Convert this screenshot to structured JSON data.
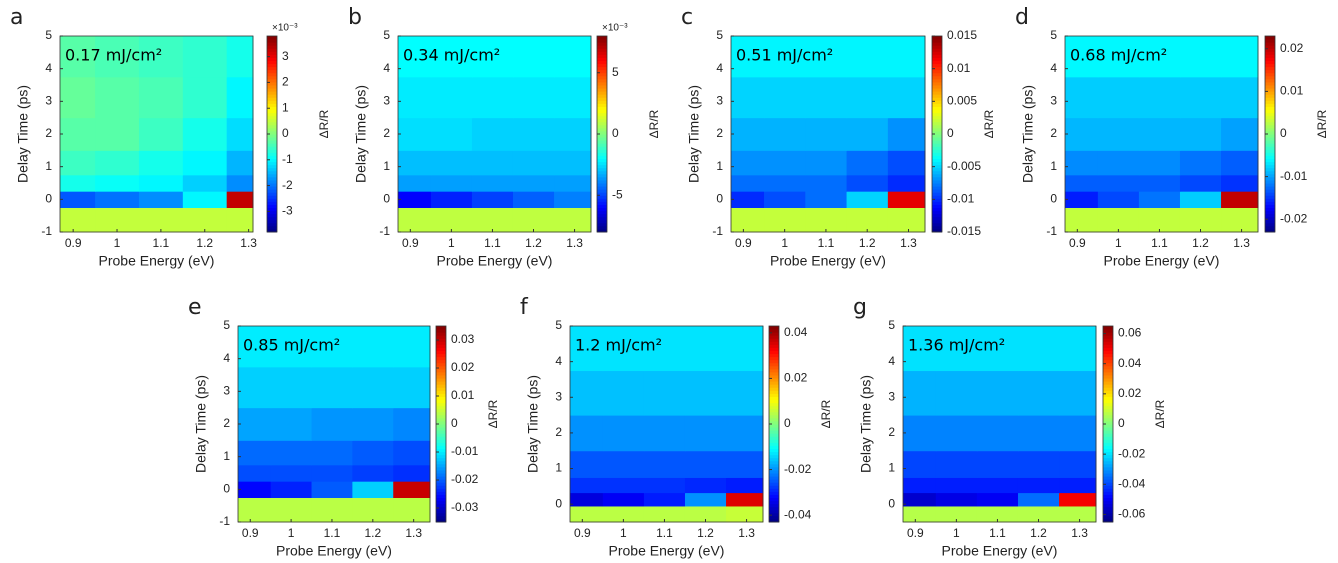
{
  "chart_data": [
    {
      "type": "heatmap",
      "panel_label": "a",
      "annotation": "0.17 mJ/cm²",
      "xlabel": "Probe Energy (eV)",
      "ylabel": "Delay Time (ps)",
      "colorbar_label": "ΔR/R",
      "colorbar_multiplier": "×10⁻³",
      "colormap": "jet",
      "x": [
        0.9,
        1.0,
        1.1,
        1.2,
        1.3
      ],
      "y": [
        -0.5,
        0,
        0.5,
        1,
        2,
        3,
        4.5
      ],
      "z": [
        [
          0.5,
          0.5,
          0.5,
          0.5,
          0.5
        ],
        [
          -2.2,
          -2,
          -1.8,
          -1,
          3.3
        ],
        [
          -0.8,
          -0.9,
          -1,
          -1.3,
          -1.8
        ],
        [
          -0.5,
          -0.6,
          -0.8,
          -1,
          -1.5
        ],
        [
          -0.3,
          -0.3,
          -0.5,
          -0.8,
          -1.2
        ],
        [
          -0.2,
          -0.3,
          -0.4,
          -0.6,
          -1
        ],
        [
          -0.3,
          -0.4,
          -0.5,
          -0.6,
          -0.8
        ]
      ],
      "xlim": [
        0.87,
        1.31
      ],
      "ylim": [
        -1,
        5
      ],
      "xticks": [
        0.9,
        1,
        1.1,
        1.2,
        1.3
      ],
      "yticks": [
        -1,
        0,
        1,
        2,
        3,
        4,
        5
      ],
      "clim": [
        -3.8,
        3.8
      ],
      "cticks": [
        -3,
        -2,
        -1,
        0,
        1,
        2,
        3
      ]
    },
    {
      "type": "heatmap",
      "panel_label": "b",
      "annotation": "0.34 mJ/cm²",
      "xlabel": "Probe Energy (eV)",
      "ylabel": "Delay Time (ps)",
      "colorbar_label": "ΔR/R",
      "colorbar_multiplier": "×10⁻³",
      "colormap": "jet",
      "x": [
        0.9,
        1.0,
        1.1,
        1.2,
        1.3
      ],
      "y": [
        -0.5,
        0,
        0.5,
        1,
        2,
        3,
        4.5
      ],
      "z": [
        [
          1,
          1,
          1,
          1,
          1
        ],
        [
          -6,
          -5.5,
          -5,
          -4.5,
          -4
        ],
        [
          -3.5,
          -3.5,
          -3.5,
          -3.5,
          -3.5
        ],
        [
          -3,
          -3,
          -3,
          -3,
          -3
        ],
        [
          -2.5,
          -2.5,
          -2.7,
          -2.7,
          -2.7
        ],
        [
          -2.3,
          -2.3,
          -2.3,
          -2.3,
          -2.3
        ],
        [
          -2,
          -2,
          -2,
          -2,
          -2
        ]
      ],
      "xlim": [
        0.87,
        1.34
      ],
      "ylim": [
        -1,
        5
      ],
      "xticks": [
        0.9,
        1,
        1.1,
        1.2,
        1.3
      ],
      "yticks": [
        -1,
        0,
        1,
        2,
        3,
        4,
        5
      ],
      "clim": [
        -8,
        8
      ],
      "cticks": [
        -5,
        0,
        5
      ]
    },
    {
      "type": "heatmap",
      "panel_label": "c",
      "annotation": "0.51 mJ/cm²",
      "xlabel": "Probe Energy (eV)",
      "ylabel": "Delay Time (ps)",
      "colorbar_label": "ΔR/R",
      "colormap": "jet",
      "x": [
        0.9,
        1.0,
        1.1,
        1.2,
        1.3
      ],
      "y": [
        -0.5,
        0,
        0.5,
        1,
        2,
        3,
        4.5
      ],
      "z": [
        [
          0.002,
          0.002,
          0.002,
          0.002,
          0.002
        ],
        [
          -0.01,
          -0.009,
          -0.008,
          -0.005,
          0.012
        ],
        [
          -0.008,
          -0.008,
          -0.008,
          -0.009,
          -0.01
        ],
        [
          -0.007,
          -0.007,
          -0.007,
          -0.008,
          -0.009
        ],
        [
          -0.006,
          -0.006,
          -0.006,
          -0.006,
          -0.007
        ],
        [
          -0.005,
          -0.005,
          -0.005,
          -0.005,
          -0.005
        ],
        [
          -0.004,
          -0.004,
          -0.004,
          -0.004,
          -0.004
        ]
      ],
      "xlim": [
        0.87,
        1.34
      ],
      "ylim": [
        -1,
        5
      ],
      "xticks": [
        0.9,
        1,
        1.1,
        1.2,
        1.3
      ],
      "yticks": [
        -1,
        0,
        1,
        2,
        3,
        4,
        5
      ],
      "clim": [
        -0.015,
        0.015
      ],
      "cticks": [
        -0.015,
        -0.01,
        -0.005,
        0,
        0.005,
        0.01,
        0.015
      ]
    },
    {
      "type": "heatmap",
      "panel_label": "d",
      "annotation": "0.68 mJ/cm²",
      "xlabel": "Probe Energy (eV)",
      "ylabel": "Delay Time (ps)",
      "colorbar_label": "ΔR/R",
      "colormap": "jet",
      "x": [
        0.9,
        1.0,
        1.1,
        1.2,
        1.3
      ],
      "y": [
        -0.5,
        0,
        0.5,
        1,
        2,
        3,
        4.5
      ],
      "z": [
        [
          0.003,
          0.003,
          0.003,
          0.003,
          0.003
        ],
        [
          -0.016,
          -0.014,
          -0.012,
          -0.008,
          0.02
        ],
        [
          -0.013,
          -0.013,
          -0.013,
          -0.014,
          -0.015
        ],
        [
          -0.011,
          -0.011,
          -0.011,
          -0.012,
          -0.013
        ],
        [
          -0.009,
          -0.009,
          -0.009,
          -0.009,
          -0.01
        ],
        [
          -0.008,
          -0.008,
          -0.008,
          -0.008,
          -0.008
        ],
        [
          -0.006,
          -0.006,
          -0.006,
          -0.006,
          -0.006
        ]
      ],
      "xlim": [
        0.87,
        1.34
      ],
      "ylim": [
        -1,
        5
      ],
      "xticks": [
        0.9,
        1,
        1.1,
        1.2,
        1.3
      ],
      "yticks": [
        -1,
        0,
        1,
        2,
        3,
        4,
        5
      ],
      "clim": [
        -0.023,
        0.023
      ],
      "cticks": [
        -0.02,
        -0.01,
        0,
        0.01,
        0.02
      ]
    },
    {
      "type": "heatmap",
      "panel_label": "e",
      "annotation": "0.85 mJ/cm²",
      "xlabel": "Probe Energy (eV)",
      "ylabel": "Delay Time (ps)",
      "colorbar_label": "ΔR/R",
      "colormap": "jet",
      "x": [
        0.9,
        1.0,
        1.1,
        1.2,
        1.3
      ],
      "y": [
        -0.5,
        0,
        0.5,
        1,
        2,
        3,
        4.5
      ],
      "z": [
        [
          0.004,
          0.004,
          0.004,
          0.004,
          0.004
        ],
        [
          -0.026,
          -0.024,
          -0.02,
          -0.012,
          0.03
        ],
        [
          -0.021,
          -0.021,
          -0.021,
          -0.022,
          -0.023
        ],
        [
          -0.019,
          -0.019,
          -0.019,
          -0.02,
          -0.021
        ],
        [
          -0.015,
          -0.015,
          -0.016,
          -0.016,
          -0.017
        ],
        [
          -0.012,
          -0.012,
          -0.012,
          -0.012,
          -0.012
        ],
        [
          -0.01,
          -0.01,
          -0.01,
          -0.01,
          -0.01
        ]
      ],
      "xlim": [
        0.87,
        1.34
      ],
      "ylim": [
        -1,
        5
      ],
      "xticks": [
        0.9,
        1,
        1.1,
        1.2,
        1.3
      ],
      "yticks": [
        -1,
        0,
        1,
        2,
        3,
        4,
        5
      ],
      "clim": [
        -0.035,
        0.035
      ],
      "cticks": [
        -0.03,
        -0.02,
        -0.01,
        0,
        0.01,
        0.02,
        0.03
      ]
    },
    {
      "type": "heatmap",
      "panel_label": "f",
      "annotation": "1.2 mJ/cm²",
      "xlabel": "Probe Energy (eV)",
      "ylabel": "Delay Time (ps)",
      "colorbar_label": "ΔR/R",
      "colormap": "jet",
      "x": [
        0.9,
        1.0,
        1.1,
        1.2,
        1.3
      ],
      "y": [
        -0.25,
        0.15,
        0.5,
        1,
        2,
        3,
        4.5
      ],
      "z": [
        [
          0.005,
          0.005,
          0.005,
          0.005,
          0.006
        ],
        [
          -0.035,
          -0.033,
          -0.03,
          -0.02,
          0.035
        ],
        [
          -0.028,
          -0.028,
          -0.028,
          -0.029,
          -0.03
        ],
        [
          -0.025,
          -0.025,
          -0.025,
          -0.025,
          -0.025
        ],
        [
          -0.02,
          -0.02,
          -0.02,
          -0.02,
          -0.02
        ],
        [
          -0.016,
          -0.016,
          -0.016,
          -0.016,
          -0.016
        ],
        [
          -0.013,
          -0.013,
          -0.013,
          -0.013,
          -0.013
        ]
      ],
      "xlim": [
        0.87,
        1.34
      ],
      "ylim": [
        -0.5,
        5
      ],
      "xticks": [
        0.9,
        1,
        1.1,
        1.2,
        1.3
      ],
      "yticks": [
        0,
        1,
        2,
        3,
        4,
        5
      ],
      "clim": [
        -0.043,
        0.043
      ],
      "cticks": [
        -0.04,
        -0.02,
        0,
        0.02,
        0.04
      ]
    },
    {
      "type": "heatmap",
      "panel_label": "g",
      "annotation": "1.36 mJ/cm²",
      "xlabel": "Probe Energy (eV)",
      "ylabel": "Delay Time (ps)",
      "colorbar_label": "ΔR/R",
      "colormap": "jet",
      "x": [
        0.9,
        1.0,
        1.1,
        1.2,
        1.3
      ],
      "y": [
        -0.25,
        0.15,
        0.5,
        1,
        2,
        3,
        4.5
      ],
      "z": [
        [
          0.007,
          0.007,
          0.007,
          0.007,
          0.007
        ],
        [
          -0.055,
          -0.052,
          -0.05,
          -0.035,
          0.05
        ],
        [
          -0.045,
          -0.045,
          -0.045,
          -0.045,
          -0.045
        ],
        [
          -0.04,
          -0.04,
          -0.04,
          -0.04,
          -0.04
        ],
        [
          -0.032,
          -0.032,
          -0.032,
          -0.032,
          -0.032
        ],
        [
          -0.026,
          -0.026,
          -0.026,
          -0.026,
          -0.026
        ],
        [
          -0.02,
          -0.02,
          -0.02,
          -0.02,
          -0.02
        ]
      ],
      "xlim": [
        0.87,
        1.34
      ],
      "ylim": [
        -0.5,
        5
      ],
      "xticks": [
        0.9,
        1,
        1.1,
        1.2,
        1.3
      ],
      "yticks": [
        0,
        1,
        2,
        3,
        4,
        5
      ],
      "clim": [
        -0.065,
        0.065
      ],
      "cticks": [
        -0.06,
        -0.04,
        -0.02,
        0,
        0.02,
        0.04,
        0.06
      ]
    }
  ]
}
